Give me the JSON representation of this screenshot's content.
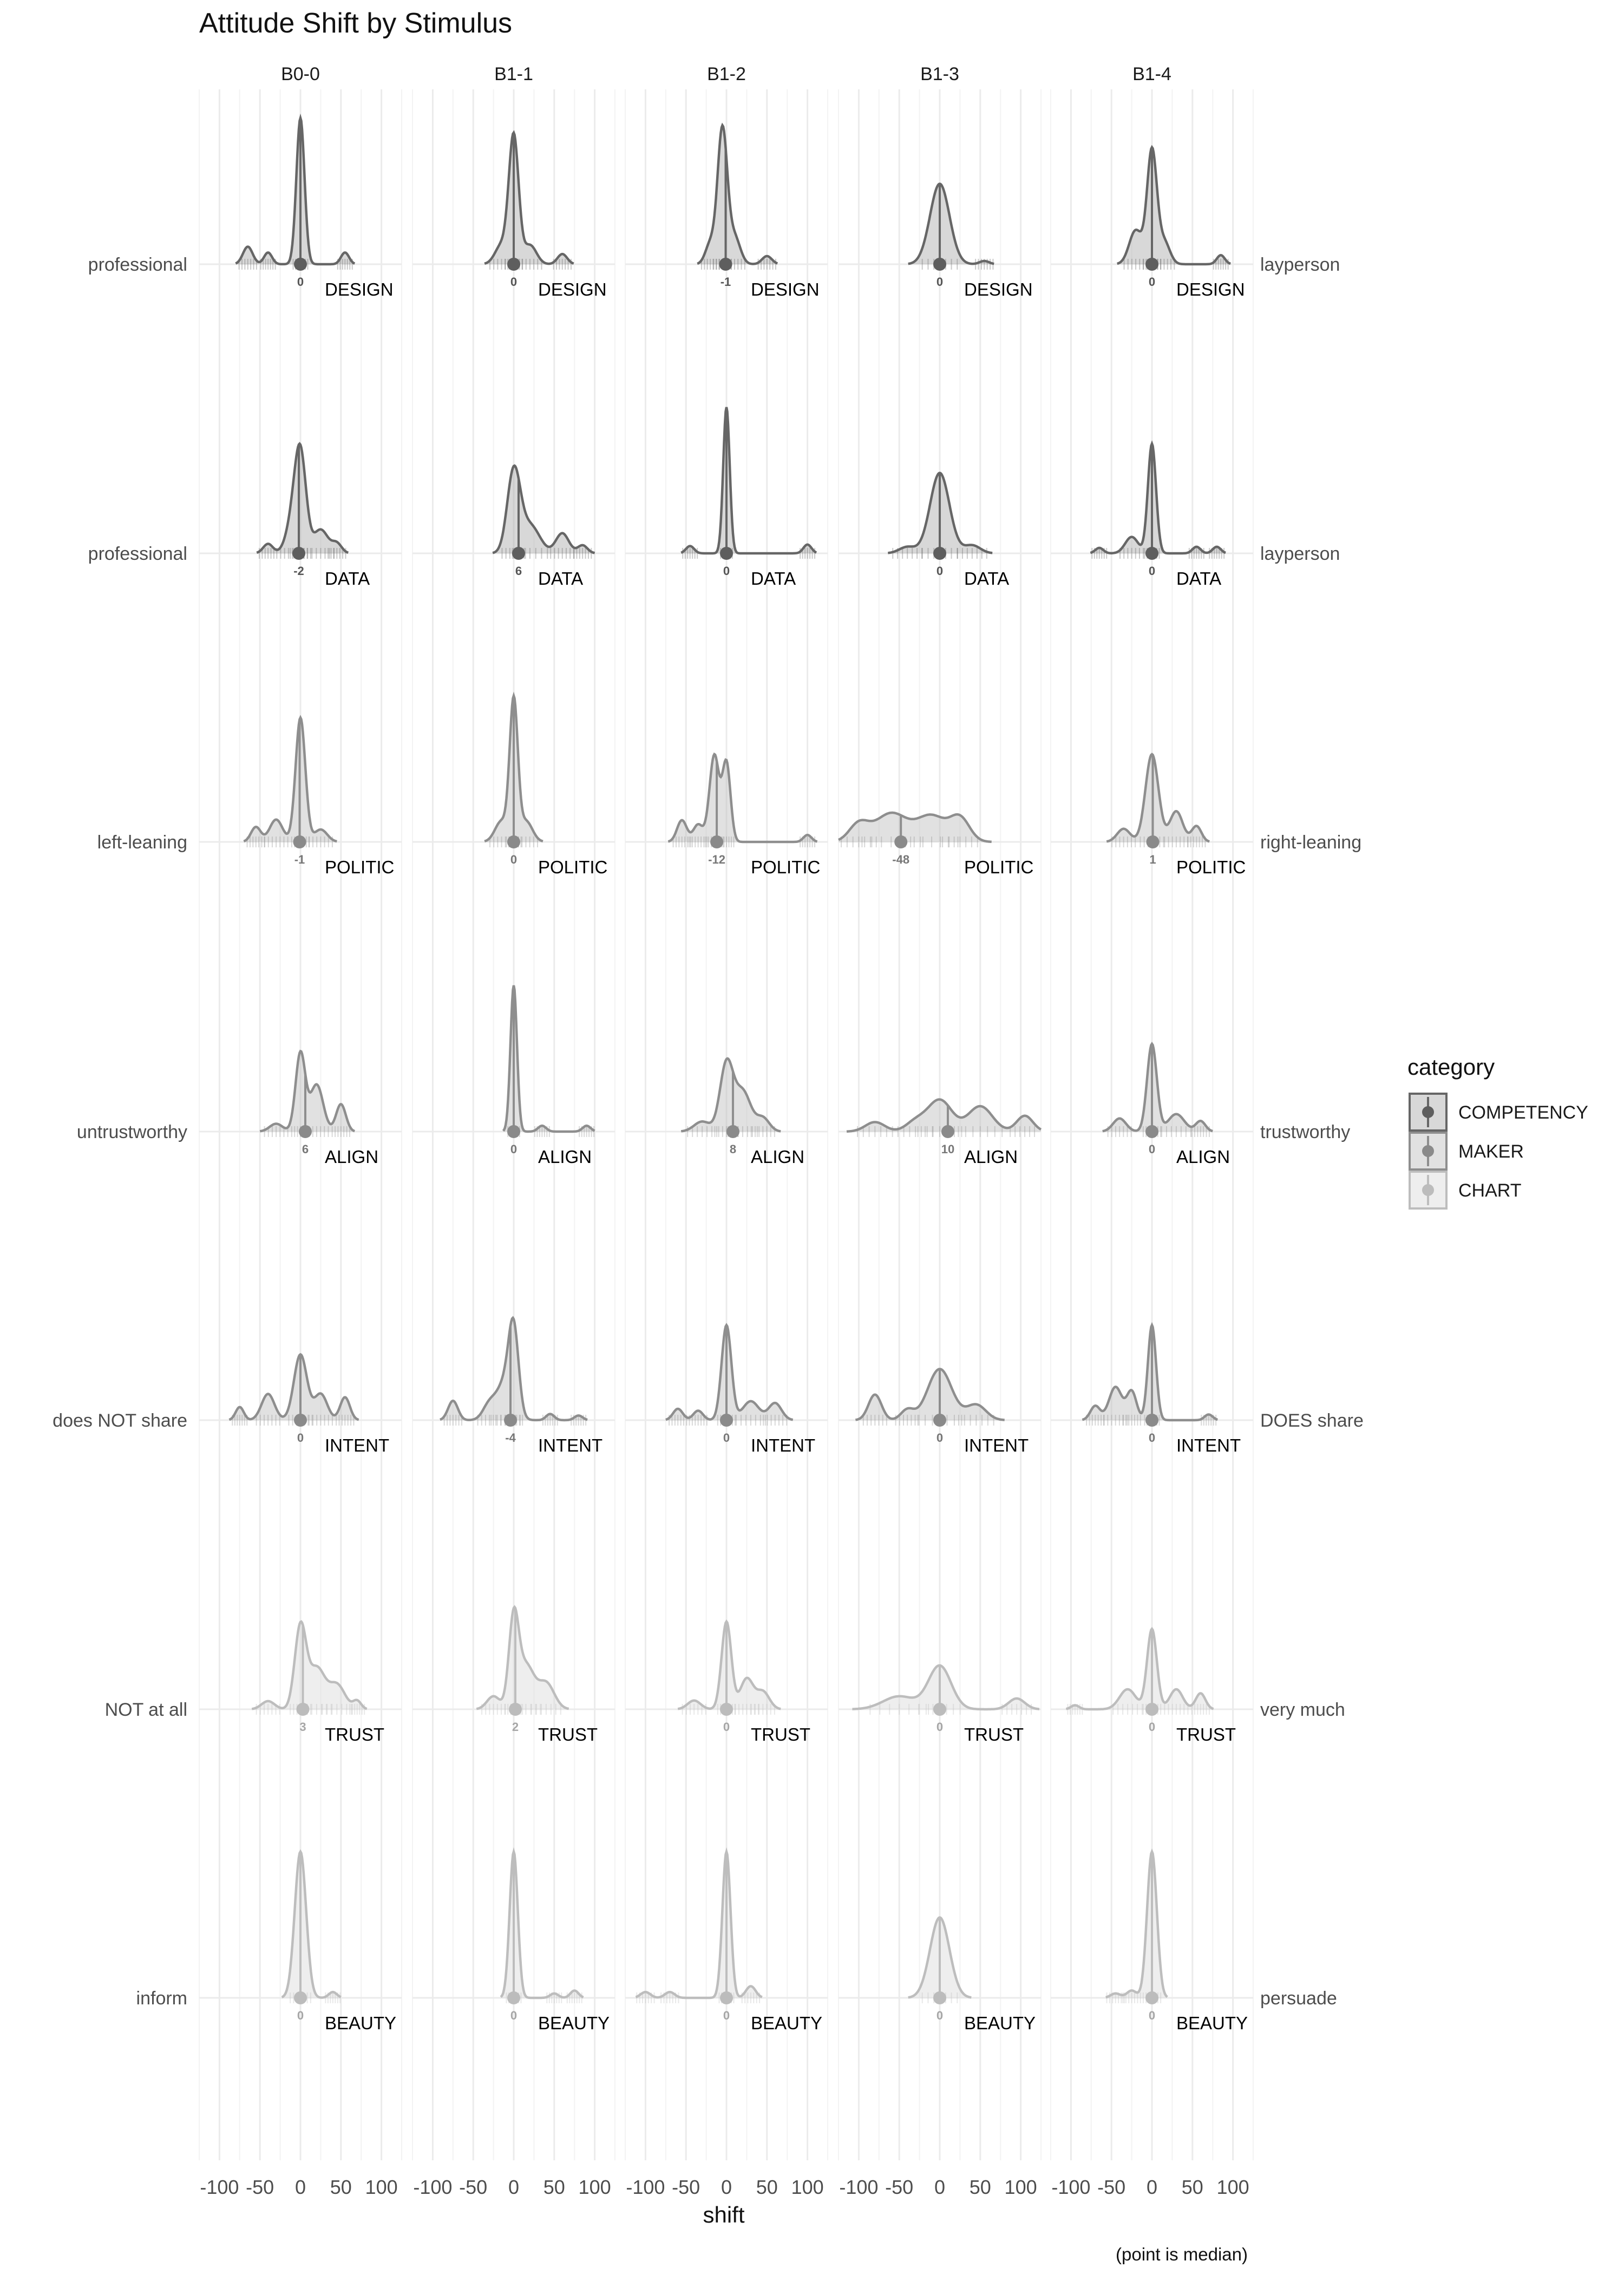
{
  "chart_data": {
    "type": "ridgeline",
    "title": "Attitude Shift by Stimulus",
    "xlabel": "shift",
    "caption": "(point is median)",
    "x_ticks": [
      -100,
      -50,
      0,
      50,
      100
    ],
    "x_tick_labels": [
      "-100",
      "-50",
      "0",
      "50",
      "100"
    ],
    "xlim": [
      -125,
      125
    ],
    "grid": true,
    "legend": {
      "title": "category",
      "position": "right",
      "entries": [
        {
          "name": "COMPETENCY",
          "color": "#666666"
        },
        {
          "name": "MAKER",
          "color": "#999999"
        },
        {
          "name": "CHART",
          "color": "#c2c2c2"
        }
      ]
    },
    "stimuli": [
      "B0-0",
      "B1-1",
      "B1-2",
      "B1-3",
      "B1-4"
    ],
    "variables": [
      {
        "name": "DESIGN",
        "category": "COMPETENCY",
        "left": "professional",
        "right": "layperson",
        "medians": [
          "0",
          "0",
          "-1",
          "0",
          "0"
        ],
        "median_values": [
          0,
          0,
          -1,
          0,
          0
        ]
      },
      {
        "name": "DATA",
        "category": "COMPETENCY",
        "left": "professional",
        "right": "layperson",
        "medians": [
          "-2",
          "6",
          "0",
          "0",
          "0"
        ],
        "median_values": [
          -2,
          6,
          0,
          0,
          0
        ]
      },
      {
        "name": "POLITIC",
        "category": "MAKER",
        "left": "left-leaning",
        "right": "right-leaning",
        "medians": [
          "-1",
          "0",
          "-12",
          "-48",
          "1"
        ],
        "median_values": [
          -1,
          0,
          -12,
          -48,
          1
        ]
      },
      {
        "name": "ALIGN",
        "category": "MAKER",
        "left": "untrustworthy",
        "right": "trustworthy",
        "medians": [
          "6",
          "0",
          "8",
          "10",
          "0"
        ],
        "median_values": [
          6,
          0,
          8,
          10,
          0
        ]
      },
      {
        "name": "INTENT",
        "category": "MAKER",
        "left": "does NOT share",
        "right": "DOES share",
        "medians": [
          "0",
          "-4",
          "0",
          "0",
          "0"
        ],
        "median_values": [
          0,
          -4,
          0,
          0,
          0
        ]
      },
      {
        "name": "TRUST",
        "category": "CHART",
        "left": "NOT at all",
        "right": "very much",
        "medians": [
          "3",
          "2",
          "0",
          "0",
          "0"
        ],
        "median_values": [
          3,
          2,
          0,
          0,
          0
        ]
      },
      {
        "name": "BEAUTY",
        "category": "CHART",
        "left": "inform",
        "right": "persuade",
        "medians": [
          "0",
          "0",
          "0",
          "0",
          "0"
        ],
        "median_values": [
          0,
          0,
          0,
          0,
          0
        ]
      }
    ],
    "densities": [
      [
        {
          "peak": 1.0,
          "comps": [
            [
              0,
              1.0,
              5
            ],
            [
              -65,
              0.12,
              6
            ],
            [
              -40,
              0.08,
              5
            ],
            [
              55,
              0.08,
              5
            ]
          ]
        },
        {
          "peak": 0.9,
          "comps": [
            [
              0,
              1.0,
              6
            ],
            [
              -15,
              0.15,
              8
            ],
            [
              20,
              0.15,
              8
            ],
            [
              60,
              0.08,
              6
            ]
          ]
        },
        {
          "peak": 0.95,
          "comps": [
            [
              -5,
              1.0,
              6
            ],
            [
              10,
              0.2,
              7
            ],
            [
              -20,
              0.15,
              6
            ],
            [
              50,
              0.06,
              6
            ]
          ]
        },
        {
          "peak": 0.55,
          "comps": [
            [
              0,
              1.0,
              12
            ],
            [
              55,
              0.04,
              6
            ]
          ]
        },
        {
          "peak": 0.8,
          "comps": [
            [
              0,
              1.0,
              6
            ],
            [
              -20,
              0.3,
              8
            ],
            [
              15,
              0.2,
              7
            ],
            [
              85,
              0.08,
              5
            ]
          ]
        }
      ],
      [
        {
          "peak": 0.75,
          "comps": [
            [
              0,
              1.0,
              7
            ],
            [
              -10,
              0.3,
              8
            ],
            [
              25,
              0.25,
              9
            ],
            [
              45,
              0.1,
              6
            ],
            [
              -40,
              0.1,
              6
            ]
          ]
        },
        {
          "peak": 0.6,
          "comps": [
            [
              0,
              1.0,
              8
            ],
            [
              20,
              0.35,
              12
            ],
            [
              60,
              0.25,
              8
            ],
            [
              85,
              0.1,
              6
            ]
          ]
        },
        {
          "peak": 1.0,
          "comps": [
            [
              0,
              1.0,
              4
            ],
            [
              -45,
              0.05,
              5
            ],
            [
              100,
              0.06,
              5
            ]
          ]
        },
        {
          "peak": 0.55,
          "comps": [
            [
              0,
              1.0,
              12
            ],
            [
              40,
              0.1,
              10
            ],
            [
              -40,
              0.08,
              10
            ]
          ]
        },
        {
          "peak": 0.75,
          "comps": [
            [
              0,
              1.0,
              5
            ],
            [
              -25,
              0.15,
              8
            ],
            [
              -65,
              0.05,
              5
            ],
            [
              55,
              0.06,
              5
            ],
            [
              80,
              0.06,
              5
            ]
          ]
        }
      ],
      [
        {
          "peak": 0.85,
          "comps": [
            [
              0,
              1.0,
              6
            ],
            [
              -30,
              0.18,
              8
            ],
            [
              -55,
              0.12,
              6
            ],
            [
              25,
              0.1,
              8
            ]
          ]
        },
        {
          "peak": 1.0,
          "comps": [
            [
              0,
              1.0,
              5
            ],
            [
              -15,
              0.15,
              8
            ],
            [
              15,
              0.15,
              8
            ]
          ]
        },
        {
          "peak": 0.6,
          "comps": [
            [
              -15,
              1.0,
              6
            ],
            [
              0,
              0.9,
              5
            ],
            [
              -55,
              0.25,
              6
            ],
            [
              -35,
              0.2,
              6
            ],
            [
              100,
              0.08,
              5
            ]
          ]
        },
        {
          "peak": 0.2,
          "comps": [
            [
              -100,
              0.6,
              12
            ],
            [
              -60,
              1.0,
              20
            ],
            [
              -10,
              0.9,
              18
            ],
            [
              25,
              0.8,
              12
            ]
          ]
        },
        {
          "peak": 0.6,
          "comps": [
            [
              0,
              1.0,
              8
            ],
            [
              30,
              0.35,
              8
            ],
            [
              -35,
              0.15,
              8
            ],
            [
              55,
              0.18,
              6
            ]
          ]
        }
      ],
      [
        {
          "peak": 0.55,
          "comps": [
            [
              0,
              1.0,
              6
            ],
            [
              20,
              0.6,
              8
            ],
            [
              50,
              0.35,
              6
            ],
            [
              -30,
              0.1,
              8
            ]
          ]
        },
        {
          "peak": 1.0,
          "comps": [
            [
              0,
              1.0,
              4
            ],
            [
              35,
              0.04,
              5
            ],
            [
              90,
              0.04,
              5
            ]
          ]
        },
        {
          "peak": 0.5,
          "comps": [
            [
              0,
              1.0,
              8
            ],
            [
              20,
              0.6,
              10
            ],
            [
              -30,
              0.15,
              10
            ],
            [
              45,
              0.2,
              8
            ]
          ]
        },
        {
          "peak": 0.22,
          "comps": [
            [
              -80,
              0.3,
              12
            ],
            [
              -30,
              0.3,
              12
            ],
            [
              0,
              1.0,
              15
            ],
            [
              50,
              0.8,
              15
            ],
            [
              105,
              0.5,
              10
            ]
          ]
        },
        {
          "peak": 0.6,
          "comps": [
            [
              0,
              1.0,
              6
            ],
            [
              -40,
              0.15,
              8
            ],
            [
              30,
              0.2,
              10
            ],
            [
              60,
              0.12,
              6
            ]
          ]
        }
      ],
      [
        {
          "peak": 0.45,
          "comps": [
            [
              0,
              1.0,
              8
            ],
            [
              -40,
              0.4,
              8
            ],
            [
              -75,
              0.2,
              5
            ],
            [
              25,
              0.4,
              8
            ],
            [
              55,
              0.35,
              6
            ]
          ]
        },
        {
          "peak": 0.7,
          "comps": [
            [
              0,
              1.0,
              6
            ],
            [
              -10,
              0.5,
              10
            ],
            [
              -75,
              0.25,
              6
            ],
            [
              -30,
              0.2,
              8
            ],
            [
              45,
              0.08,
              5
            ],
            [
              80,
              0.06,
              5
            ]
          ]
        },
        {
          "peak": 0.65,
          "comps": [
            [
              0,
              1.0,
              6
            ],
            [
              -60,
              0.12,
              6
            ],
            [
              -35,
              0.1,
              6
            ],
            [
              30,
              0.2,
              10
            ],
            [
              60,
              0.18,
              8
            ]
          ]
        },
        {
          "peak": 0.35,
          "comps": [
            [
              0,
              1.0,
              15
            ],
            [
              -80,
              0.5,
              8
            ],
            [
              -40,
              0.2,
              8
            ],
            [
              45,
              0.3,
              12
            ]
          ]
        },
        {
          "peak": 0.65,
          "comps": [
            [
              0,
              1.0,
              5
            ],
            [
              -45,
              0.35,
              8
            ],
            [
              -25,
              0.3,
              6
            ],
            [
              -70,
              0.15,
              6
            ],
            [
              70,
              0.06,
              5
            ]
          ]
        }
      ],
      [
        {
          "peak": 0.6,
          "comps": [
            [
              0,
              1.0,
              7
            ],
            [
              20,
              0.5,
              10
            ],
            [
              45,
              0.3,
              10
            ],
            [
              -40,
              0.1,
              8
            ],
            [
              70,
              0.1,
              5
            ]
          ]
        },
        {
          "peak": 0.7,
          "comps": [
            [
              0,
              1.0,
              6
            ],
            [
              15,
              0.5,
              10
            ],
            [
              40,
              0.3,
              10
            ],
            [
              -25,
              0.15,
              8
            ]
          ]
        },
        {
          "peak": 0.6,
          "comps": [
            [
              0,
              1.0,
              6
            ],
            [
              25,
              0.35,
              8
            ],
            [
              -40,
              0.1,
              8
            ],
            [
              45,
              0.2,
              8
            ]
          ]
        },
        {
          "peak": 0.3,
          "comps": [
            [
              0,
              1.0,
              14
            ],
            [
              -50,
              0.3,
              20
            ],
            [
              95,
              0.25,
              10
            ]
          ]
        },
        {
          "peak": 0.55,
          "comps": [
            [
              0,
              1.0,
              6
            ],
            [
              -30,
              0.25,
              10
            ],
            [
              30,
              0.25,
              8
            ],
            [
              60,
              0.2,
              6
            ],
            [
              -95,
              0.05,
              5
            ]
          ]
        }
      ],
      [
        {
          "peak": 1.0,
          "comps": [
            [
              0,
              1.0,
              7
            ],
            [
              40,
              0.04,
              5
            ]
          ]
        },
        {
          "peak": 1.0,
          "comps": [
            [
              0,
              1.0,
              5
            ],
            [
              50,
              0.03,
              5
            ],
            [
              75,
              0.05,
              5
            ]
          ]
        },
        {
          "peak": 1.0,
          "comps": [
            [
              0,
              1.0,
              5
            ],
            [
              -100,
              0.04,
              6
            ],
            [
              -70,
              0.04,
              6
            ],
            [
              30,
              0.08,
              6
            ]
          ]
        },
        {
          "peak": 0.55,
          "comps": [
            [
              0,
              1.0,
              12
            ]
          ]
        },
        {
          "peak": 1.0,
          "comps": [
            [
              0,
              1.0,
              6
            ],
            [
              -45,
              0.03,
              6
            ],
            [
              -25,
              0.05,
              6
            ]
          ]
        }
      ]
    ]
  }
}
